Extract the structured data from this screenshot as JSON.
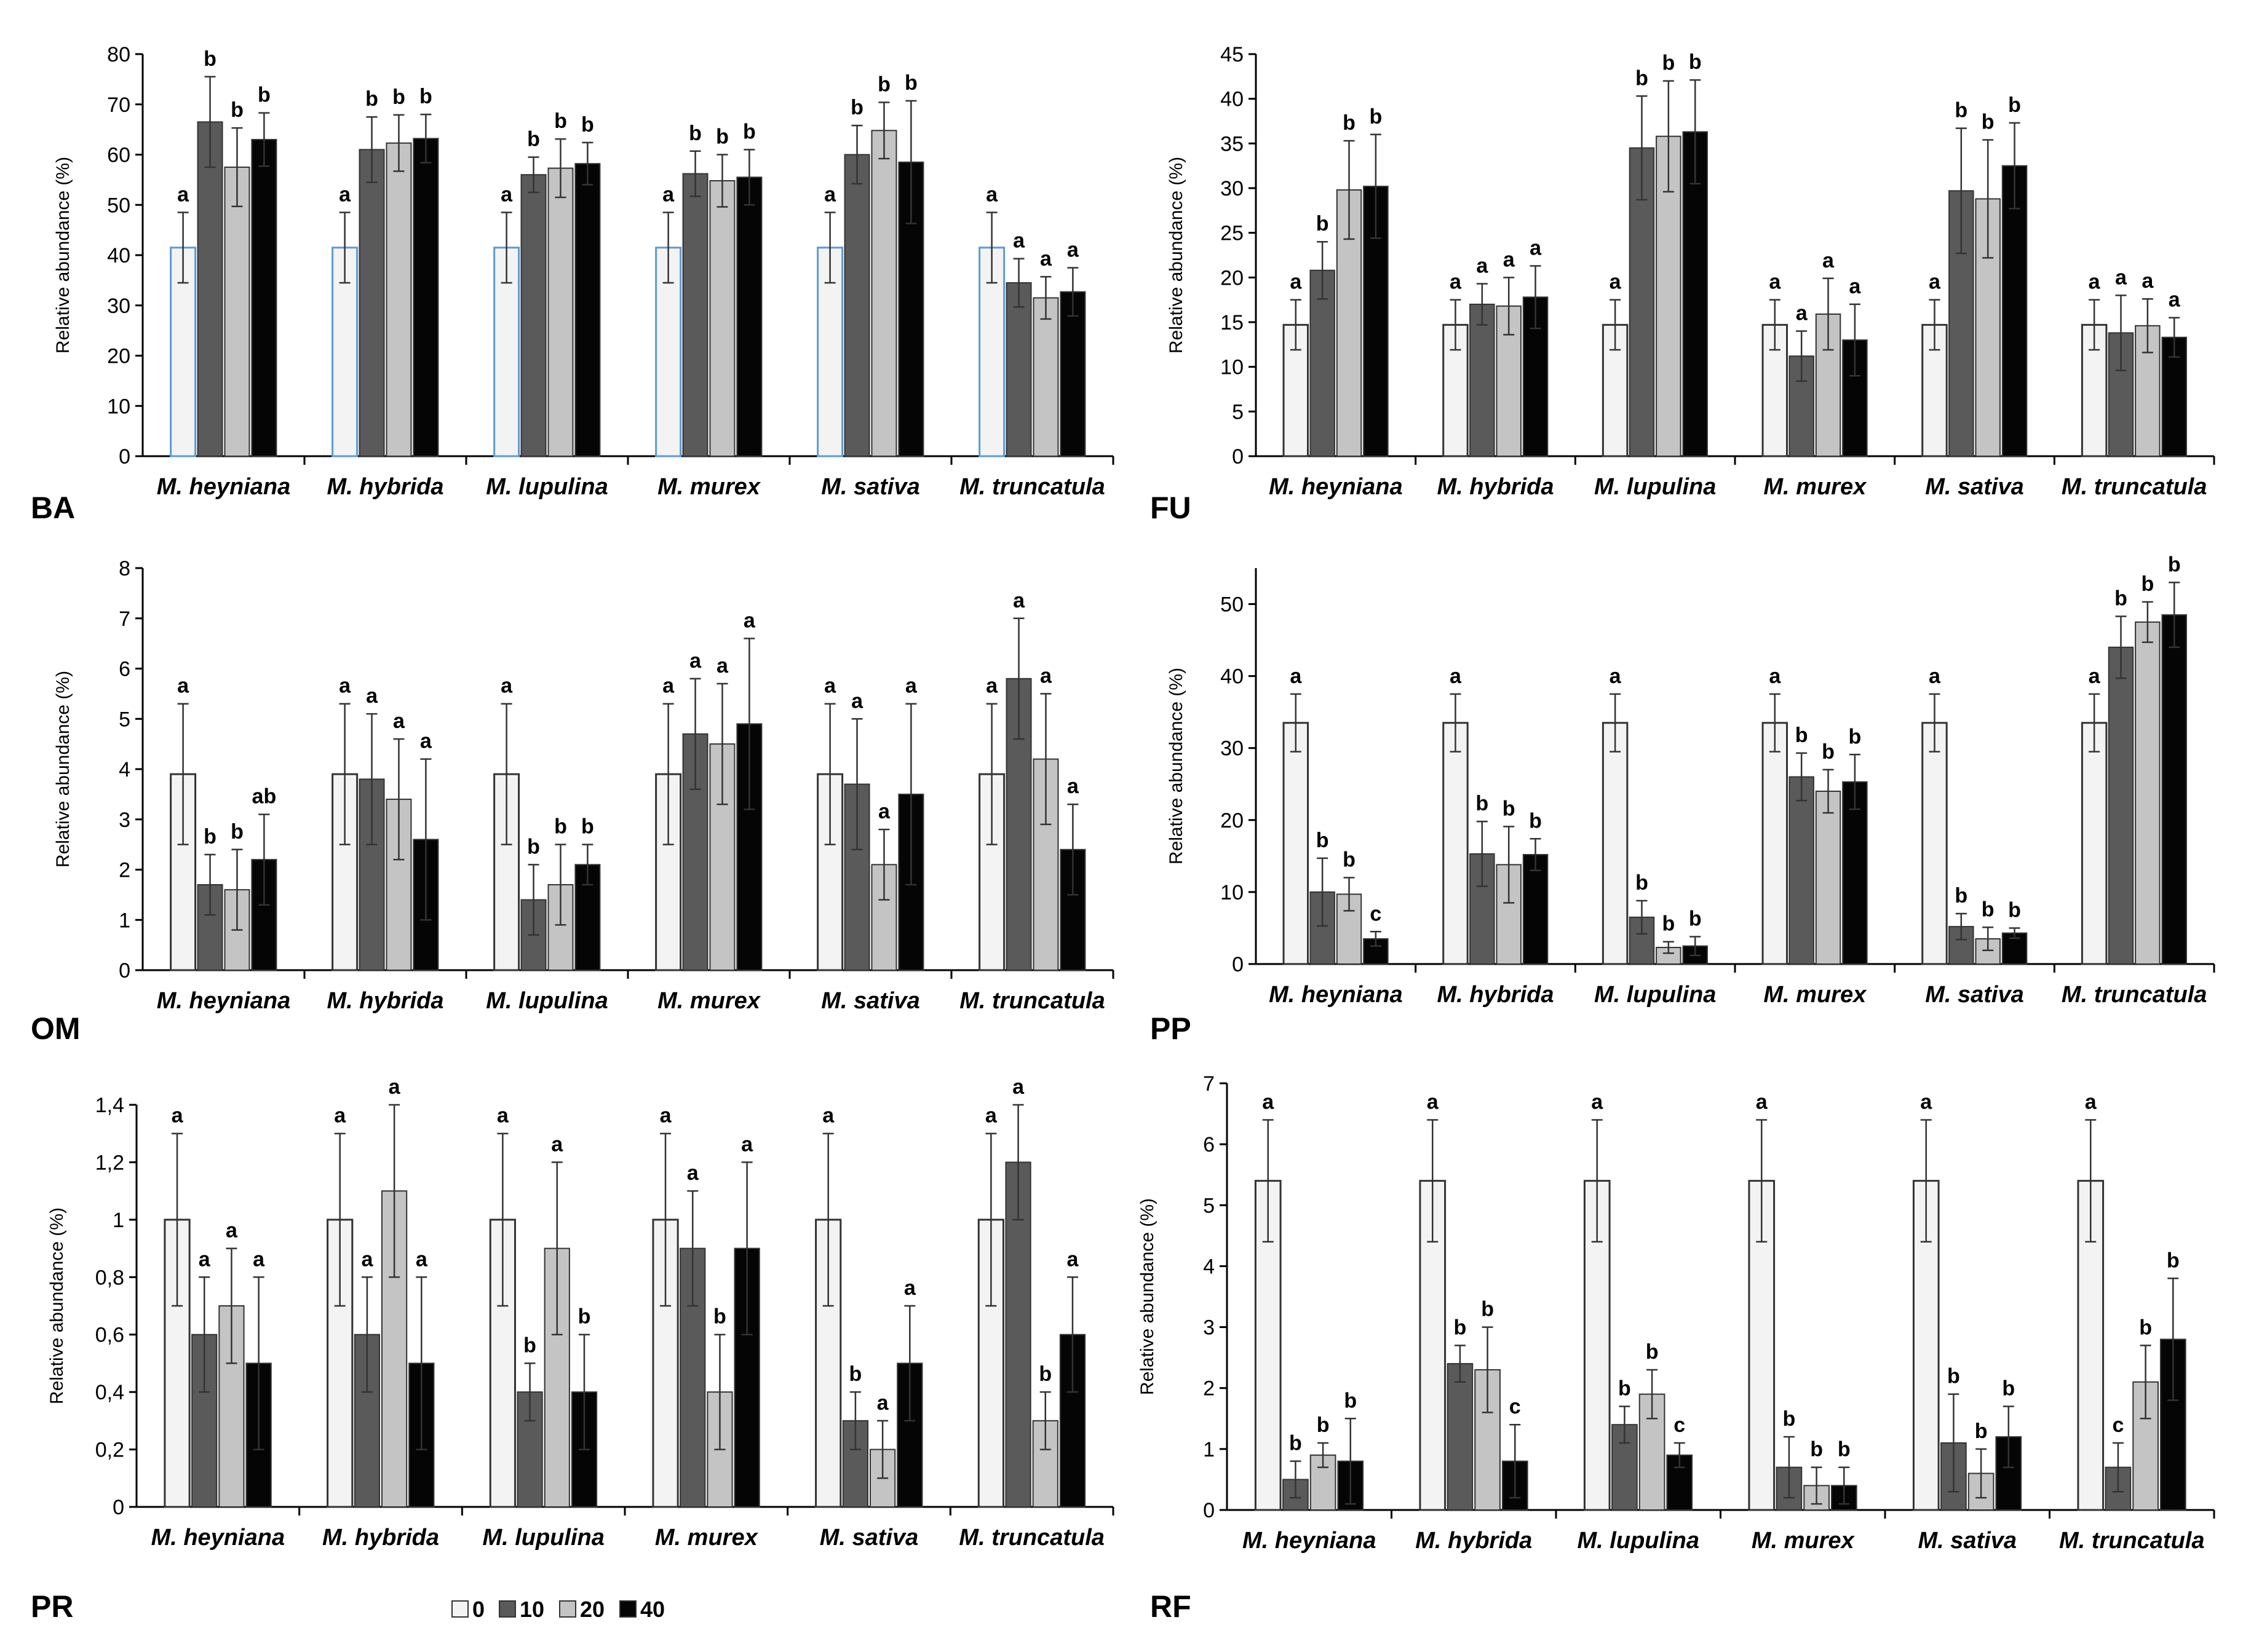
{
  "legend": [
    {
      "label": "0",
      "color": "#f3f3f3"
    },
    {
      "label": "10",
      "color": "#5a5a5a"
    },
    {
      "label": "20",
      "color": "#c4c4c4"
    },
    {
      "label": "40",
      "color": "#050505"
    }
  ],
  "chart_data": [
    {
      "type": "bar",
      "panel": "BA",
      "ylabel": "Relative abundance (%)",
      "ylim": [
        0,
        80
      ],
      "yticks": [
        "0",
        "10",
        "20",
        "30",
        "40",
        "50",
        "60",
        "70",
        "80"
      ],
      "categories": [
        "M. heyniana",
        "M. hybrida",
        "M. lupulina",
        "M. murex",
        "M. sativa",
        "M. truncatula"
      ],
      "series": [
        {
          "name": "0",
          "values": [
            41.5,
            41.5,
            41.5,
            41.5,
            41.5,
            41.5
          ],
          "errors": [
            7,
            7,
            7,
            7,
            7,
            7
          ],
          "letters": [
            "a",
            "a",
            "a",
            "a",
            "a",
            "a"
          ]
        },
        {
          "name": "10",
          "values": [
            66.5,
            61,
            56,
            56.2,
            60,
            34.5
          ],
          "errors": [
            9,
            6.5,
            3.5,
            4.5,
            5.8,
            4.8
          ],
          "letters": [
            "b",
            "b",
            "b",
            "b",
            "b",
            "a"
          ]
        },
        {
          "name": "20",
          "values": [
            57.5,
            62.3,
            57.3,
            54.8,
            64.8,
            31.5
          ],
          "errors": [
            7.8,
            5.6,
            5.8,
            5.2,
            5.6,
            4.2
          ],
          "letters": [
            "b",
            "b",
            "b",
            "b",
            "b",
            "a"
          ]
        },
        {
          "name": "40",
          "values": [
            63,
            63.2,
            58.2,
            55.5,
            58.5,
            32.7
          ],
          "errors": [
            5.3,
            4.8,
            4.2,
            5.5,
            12.2,
            4.8
          ],
          "letters": [
            "b",
            "b",
            "b",
            "b",
            "b",
            "a"
          ]
        }
      ]
    },
    {
      "type": "bar",
      "panel": "FU",
      "ylabel": "Relative abundance (%)",
      "ylim": [
        0,
        45
      ],
      "yticks": [
        "0",
        "5",
        "10",
        "15",
        "20",
        "25",
        "30",
        "35",
        "40",
        "45"
      ],
      "categories": [
        "M. heyniana",
        "M. hybrida",
        "M. lupulina",
        "M. murex",
        "M. sativa",
        "M. truncatula"
      ],
      "series": [
        {
          "name": "0",
          "values": [
            14.7,
            14.7,
            14.7,
            14.7,
            14.7,
            14.7
          ],
          "errors": [
            2.8,
            2.8,
            2.8,
            2.8,
            2.8,
            2.8
          ],
          "letters": [
            "a",
            "a",
            "a",
            "a",
            "a",
            "a"
          ]
        },
        {
          "name": "10",
          "values": [
            20.8,
            17,
            34.5,
            11.2,
            29.7,
            13.8
          ],
          "errors": [
            3.2,
            2.3,
            5.8,
            2.8,
            7,
            4.2
          ],
          "letters": [
            "b",
            "a",
            "b",
            "a",
            "b",
            "a"
          ]
        },
        {
          "name": "20",
          "values": [
            29.8,
            16.8,
            35.8,
            15.9,
            28.8,
            14.6
          ],
          "errors": [
            5.5,
            3.2,
            6.2,
            4,
            6.6,
            3
          ],
          "letters": [
            "b",
            "a",
            "b",
            "a",
            "b",
            "a"
          ]
        },
        {
          "name": "40",
          "values": [
            30.2,
            17.8,
            36.3,
            13,
            32.5,
            13.3
          ],
          "errors": [
            5.8,
            3.5,
            5.8,
            4,
            4.8,
            2.2
          ],
          "letters": [
            "b",
            "a",
            "b",
            "a",
            "b",
            "a"
          ]
        }
      ]
    },
    {
      "type": "bar",
      "panel": "OM",
      "ylabel": "Relative abundance (%)",
      "ylim": [
        0,
        8
      ],
      "yticks": [
        "0",
        "1",
        "2",
        "3",
        "4",
        "5",
        "6",
        "7",
        "8"
      ],
      "categories": [
        "M. heyniana",
        "M. hybrida",
        "M. lupulina",
        "M. murex",
        "M. sativa",
        "M. truncatula"
      ],
      "series": [
        {
          "name": "0",
          "values": [
            3.9,
            3.9,
            3.9,
            3.9,
            3.9,
            3.9
          ],
          "errors": [
            1.4,
            1.4,
            1.4,
            1.4,
            1.4,
            1.4
          ],
          "letters": [
            "a",
            "a",
            "a",
            "a",
            "a",
            "a"
          ]
        },
        {
          "name": "10",
          "values": [
            1.7,
            3.8,
            1.4,
            4.7,
            3.7,
            5.8
          ],
          "errors": [
            0.6,
            1.3,
            0.7,
            1.1,
            1.3,
            1.2
          ],
          "letters": [
            "b",
            "a",
            "b",
            "a",
            "a",
            "a"
          ]
        },
        {
          "name": "20",
          "values": [
            1.6,
            3.4,
            1.7,
            4.5,
            2.1,
            4.2
          ],
          "errors": [
            0.8,
            1.2,
            0.8,
            1.2,
            0.7,
            1.3
          ],
          "letters": [
            "b",
            "a",
            "b",
            "a",
            "a",
            "a"
          ]
        },
        {
          "name": "40",
          "values": [
            2.2,
            2.6,
            2.1,
            4.9,
            3.5,
            2.4
          ],
          "errors": [
            0.9,
            1.6,
            0.4,
            1.7,
            1.8,
            0.9
          ],
          "letters": [
            "ab",
            "a",
            "b",
            "a",
            "a",
            "a"
          ]
        }
      ]
    },
    {
      "type": "bar",
      "panel": "PP",
      "ylabel": "Relative abundance (%)",
      "ylim": [
        0,
        55
      ],
      "yticks": [
        "0",
        "10",
        "20",
        "30",
        "40",
        "50"
      ],
      "tickStep": 10,
      "categories": [
        "M. heyniana",
        "M. hybrida",
        "M. lupulina",
        "M. murex",
        "M. sativa",
        "M. truncatula"
      ],
      "series": [
        {
          "name": "0",
          "values": [
            33.5,
            33.5,
            33.5,
            33.5,
            33.5,
            33.5
          ],
          "errors": [
            4,
            4,
            4,
            4,
            4,
            4
          ],
          "letters": [
            "a",
            "a",
            "a",
            "a",
            "a",
            "a"
          ]
        },
        {
          "name": "10",
          "values": [
            10,
            15.3,
            6.5,
            26,
            5.2,
            44
          ],
          "errors": [
            4.7,
            4.5,
            2.3,
            3.3,
            1.8,
            4.3
          ],
          "letters": [
            "b",
            "b",
            "b",
            "b",
            "b",
            "b"
          ]
        },
        {
          "name": "20",
          "values": [
            9.7,
            13.8,
            2.3,
            24,
            3.5,
            47.5
          ],
          "errors": [
            2.3,
            5.3,
            0.8,
            3,
            1.6,
            2.8
          ],
          "letters": [
            "b",
            "b",
            "b",
            "b",
            "b",
            "b"
          ]
        },
        {
          "name": "40",
          "values": [
            3.5,
            15.2,
            2.5,
            25.3,
            4.3,
            48.5
          ],
          "errors": [
            1,
            2.2,
            1.3,
            3.8,
            0.7,
            4.5
          ],
          "letters": [
            "c",
            "b",
            "b",
            "b",
            "b",
            "b"
          ]
        }
      ]
    },
    {
      "type": "bar",
      "panel": "PR",
      "ylabel": "Relative abundance (%)",
      "ylim": [
        0,
        1.4
      ],
      "yticks": [
        "0",
        "0,2",
        "0,4",
        "0,6",
        "0,8",
        "1",
        "1,2",
        "1,4"
      ],
      "categories": [
        "M. heyniana",
        "M. hybrida",
        "M. lupulina",
        "M. murex",
        "M. sativa",
        "M. truncatula"
      ],
      "series": [
        {
          "name": "0",
          "values": [
            1,
            1,
            1,
            1,
            1,
            1
          ],
          "errors": [
            0.3,
            0.3,
            0.3,
            0.3,
            0.3,
            0.3
          ],
          "letters": [
            "a",
            "a",
            "a",
            "a",
            "a",
            "a"
          ]
        },
        {
          "name": "10",
          "values": [
            0.6,
            0.6,
            0.4,
            0.9,
            0.3,
            1.2
          ],
          "errors": [
            0.2,
            0.2,
            0.1,
            0.2,
            0.1,
            0.2
          ],
          "letters": [
            "a",
            "a",
            "b",
            "a",
            "b",
            "a"
          ]
        },
        {
          "name": "20",
          "values": [
            0.7,
            1.1,
            0.9,
            0.4,
            0.2,
            0.3
          ],
          "errors": [
            0.2,
            0.3,
            0.3,
            0.2,
            0.1,
            0.1
          ],
          "letters": [
            "a",
            "a",
            "a",
            "b",
            "a",
            "b"
          ]
        },
        {
          "name": "40",
          "values": [
            0.5,
            0.5,
            0.4,
            0.9,
            0.5,
            0.6
          ],
          "errors": [
            0.3,
            0.3,
            0.2,
            0.3,
            0.2,
            0.2
          ],
          "letters": [
            "a",
            "a",
            "b",
            "a",
            "a",
            "a"
          ]
        }
      ]
    },
    {
      "type": "bar",
      "panel": "RF",
      "ylabel": "Relative abundance (%)",
      "ylim": [
        0,
        7
      ],
      "yticks": [
        "0",
        "1",
        "2",
        "3",
        "4",
        "5",
        "6",
        "7"
      ],
      "categories": [
        "M. heyniana",
        "M. hybrida",
        "M. lupulina",
        "M. murex",
        "M. sativa",
        "M. truncatula"
      ],
      "series": [
        {
          "name": "0",
          "values": [
            5.4,
            5.4,
            5.4,
            5.4,
            5.4,
            5.4
          ],
          "errors": [
            1,
            1,
            1,
            1,
            1,
            1
          ],
          "letters": [
            "a",
            "a",
            "a",
            "a",
            "a",
            "a"
          ]
        },
        {
          "name": "10",
          "values": [
            0.5,
            2.4,
            1.4,
            0.7,
            1.1,
            0.7
          ],
          "errors": [
            0.3,
            0.3,
            0.3,
            0.5,
            0.8,
            0.4
          ],
          "letters": [
            "b",
            "b",
            "b",
            "b",
            "b",
            "c"
          ]
        },
        {
          "name": "20",
          "values": [
            0.9,
            2.3,
            1.9,
            0.4,
            0.6,
            2.1
          ],
          "errors": [
            0.2,
            0.7,
            0.4,
            0.3,
            0.4,
            0.6
          ],
          "letters": [
            "b",
            "b",
            "b",
            "b",
            "b",
            "b"
          ]
        },
        {
          "name": "40",
          "values": [
            0.8,
            0.8,
            0.9,
            0.4,
            1.2,
            2.8
          ],
          "errors": [
            0.7,
            0.6,
            0.2,
            0.3,
            0.5,
            1
          ],
          "letters": [
            "b",
            "c",
            "c",
            "b",
            "b",
            "b"
          ]
        }
      ]
    }
  ]
}
